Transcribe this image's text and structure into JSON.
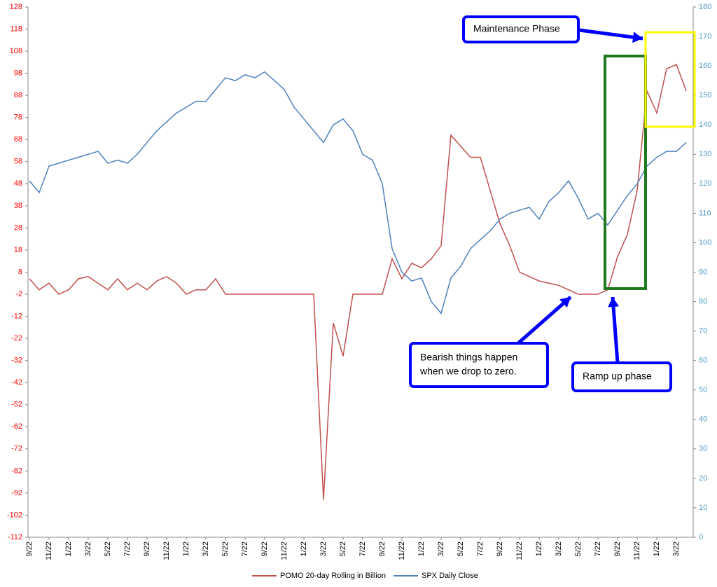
{
  "chart_data": {
    "type": "line",
    "categories": [
      "9/22",
      null,
      "11/22",
      null,
      "1/22",
      null,
      "3/22",
      null,
      "5/22",
      null,
      "7/22",
      null,
      "9/22",
      null,
      "11/22",
      null,
      "1/22",
      null,
      "3/22",
      null,
      "5/22",
      null,
      "7/22",
      null,
      "9/22",
      null,
      "11/22",
      null,
      "1/22",
      null,
      "3/22",
      null,
      "5/22",
      null,
      "7/22",
      null,
      "9/22",
      null,
      "11/22",
      null,
      "1/22",
      null,
      "3/22",
      null,
      "5/22",
      null,
      "7/22",
      null,
      "9/22",
      null,
      "11/22",
      null,
      "1/22",
      null,
      "3/22",
      null,
      "5/22",
      null,
      "7/22",
      null,
      "9/22",
      null,
      "11/22",
      null,
      "1/22",
      null,
      "3/22",
      null
    ],
    "series": [
      {
        "name": "POMO 20-day Rolling in Billion",
        "color": "#c0504d",
        "values": [
          5,
          0,
          3,
          -2,
          0,
          5,
          6,
          3,
          0,
          5,
          0,
          3,
          0,
          4,
          6,
          3,
          -2,
          0,
          0,
          5,
          -2,
          -2,
          -2,
          -2,
          -2,
          -2,
          -2,
          -2,
          -2,
          -2,
          -95,
          -15,
          -30,
          -2,
          -2,
          -2,
          -2,
          14,
          5,
          12,
          10,
          14,
          20,
          70,
          65,
          60,
          60,
          45,
          30,
          20,
          8,
          6,
          4,
          3,
          2,
          0,
          -2,
          -2,
          -2,
          0,
          15,
          25,
          45,
          90,
          80,
          100,
          102,
          90
        ]
      },
      {
        "name": "SPX Daily Close",
        "color": "#4f81bd",
        "axis": "y2",
        "values": [
          121,
          117,
          126,
          127,
          128,
          129,
          130,
          131,
          127,
          128,
          127,
          130,
          134,
          138,
          141,
          144,
          146,
          148,
          148,
          152,
          156,
          155,
          157,
          156,
          158,
          155,
          152,
          146,
          142,
          138,
          134,
          140,
          142,
          138,
          130,
          128,
          120,
          98,
          90,
          87,
          88,
          80,
          76,
          88,
          92,
          98,
          101,
          104,
          108,
          110,
          111,
          112,
          108,
          114,
          117,
          121,
          115,
          108,
          110,
          106,
          111,
          116,
          120,
          126,
          129,
          131,
          131,
          134
        ]
      }
    ],
    "ylim": [
      -112,
      128
    ],
    "yticks": [
      -112,
      -102,
      -92,
      -82,
      -72,
      -62,
      -52,
      -42,
      -32,
      -22,
      -12,
      -2,
      8,
      18,
      28,
      38,
      48,
      58,
      68,
      78,
      88,
      98,
      108,
      118,
      128
    ],
    "y2lim": [
      0,
      180
    ],
    "y2ticks": [
      0,
      10,
      20,
      30,
      40,
      50,
      60,
      70,
      80,
      90,
      100,
      110,
      120,
      130,
      140,
      150,
      160,
      170,
      180
    ],
    "annotations": [
      {
        "lines": [
          "Maintenance Phase"
        ]
      },
      {
        "lines": [
          "Bearish things happen",
          "when we drop to zero."
        ]
      },
      {
        "lines": [
          "Ramp up phase"
        ]
      }
    ],
    "legend": "bottom"
  }
}
